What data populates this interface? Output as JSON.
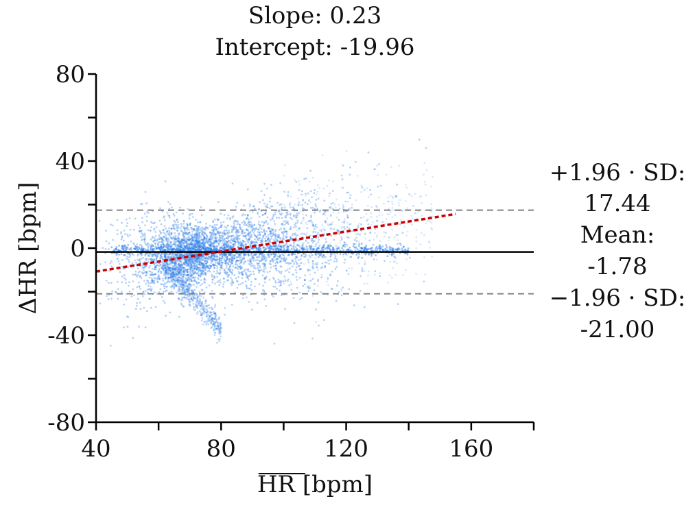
{
  "chart_data": {
    "type": "scatter",
    "title_lines": [
      "Slope: 0.23",
      "Intercept: -19.96"
    ],
    "xlabel": "HR [bpm]",
    "ylabel": "ΔHR [bpm]",
    "xlim": [
      40,
      180
    ],
    "ylim": [
      -80,
      80
    ],
    "x_ticks": [
      40,
      80,
      120,
      160
    ],
    "x_minor_ticks": [
      60,
      100,
      140,
      180
    ],
    "y_ticks": [
      -80,
      -40,
      0,
      40,
      80
    ],
    "y_minor_ticks": [
      -60,
      -20,
      20,
      60
    ],
    "x_tick_labels": [
      "40",
      "80",
      "120",
      "160"
    ],
    "y_tick_labels": [
      "-80",
      "-40",
      "0",
      "40",
      "80"
    ],
    "mean": -1.78,
    "upper_loa": 17.44,
    "lower_loa": -21.0,
    "regression": {
      "slope": 0.23,
      "intercept": -19.96,
      "x_range": [
        40,
        155
      ]
    },
    "annotations": {
      "upper_label": "+1.96 · SD:",
      "upper_value": "17.44",
      "mean_label": "Mean:",
      "mean_value": "-1.78",
      "lower_label": "−1.96 · SD:",
      "lower_value": "-21.00"
    },
    "colors": {
      "points": "#2f7fe8",
      "mean_line": "#000000",
      "loa_line": "#808080",
      "regression_line": "#cc0000"
    },
    "grid": false,
    "legend": "none"
  }
}
